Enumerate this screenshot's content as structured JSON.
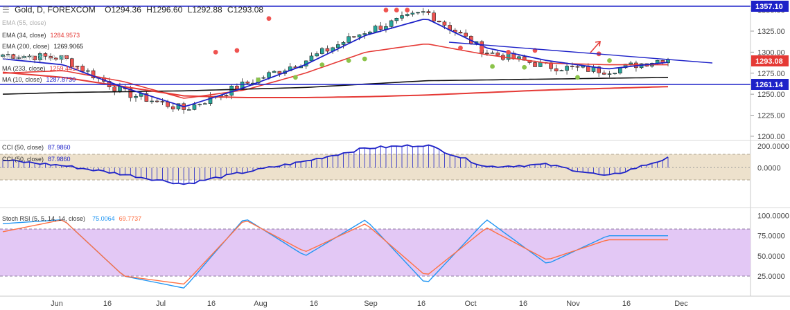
{
  "header": {
    "symbol": "Gold, D, FOREXCOM",
    "o_label": "O",
    "o": "1294.36",
    "h_label": "H",
    "h": "1296.60",
    "l_label": "L",
    "l": "1292.88",
    "c_label": "C",
    "c": "1293.08"
  },
  "indicators": [
    {
      "label": "EMA (55, close)",
      "value": "",
      "value_color": "#b0b0b0",
      "faded": true
    },
    {
      "label": "EMA (34, close)",
      "value": "1284.9573",
      "value_color": "#e53935",
      "faded": false
    },
    {
      "label": "EMA (200, close)",
      "value": "1269.9065",
      "value_color": "#111111",
      "faded": false
    },
    {
      "label": "Ichimoku (9, 26, 52, 26)",
      "value": "",
      "value_color": "#b0b0b0",
      "faded": true
    },
    {
      "label": "MA (233, close)",
      "value": "1259.4419",
      "value_color": "#e53935",
      "faded": false
    },
    {
      "label": "MA (10, close)",
      "value": "1287.8730",
      "value_color": "#1e22c8",
      "faded": false
    }
  ],
  "price_axis": {
    "ticks": [
      "1350.00",
      "1325.00",
      "1300.00",
      "1275.00",
      "1250.00",
      "1225.00",
      "1200.00"
    ],
    "level_labels": [
      {
        "text": "1357.10",
        "color": "#1e22c8"
      },
      {
        "text": "1293.08",
        "color": "#e53935"
      },
      {
        "text": "1261.14",
        "color": "#1e22c8"
      }
    ]
  },
  "cci_panel": {
    "labels": [
      {
        "text": "CCI (50, close)",
        "value": "87.9860"
      },
      {
        "text": "CCI (50, close)",
        "value": "87.9860"
      }
    ],
    "ticks": [
      "200.0000",
      "0.0000"
    ]
  },
  "stoch_panel": {
    "label": "Stoch RSI (5, 5, 14, 14, close)",
    "k_value": "75.0064",
    "d_value": "69.7737",
    "ticks": [
      "100.0000",
      "75.0000",
      "50.0000",
      "25.0000"
    ]
  },
  "time_axis": [
    "Jun",
    "16",
    "Jul",
    "16",
    "Aug",
    "16",
    "Sep",
    "16",
    "Oct",
    "16",
    "Nov",
    "16",
    "Dec"
  ],
  "colors": {
    "up": "#26a69a",
    "down": "#ef5350",
    "blue": "#1e22c8",
    "red": "#e53935",
    "black": "#111111",
    "cci_band": "#ede1cc",
    "stoch_band": "#e3c8f5",
    "stoch_k": "#2196f3",
    "stoch_d": "#ff7043"
  },
  "chart_data": [
    {
      "type": "line",
      "title": "Gold, D, FOREXCOM",
      "x": [
        "Jun",
        "Jun 16",
        "Jul",
        "Jul 16",
        "Aug",
        "Aug 16",
        "Sep",
        "Sep 16",
        "Oct",
        "Oct 16",
        "Nov",
        "Nov 16"
      ],
      "series": [
        {
          "name": "Close",
          "values": [
            1297,
            1293,
            1252,
            1232,
            1262,
            1290,
            1325,
            1348,
            1300,
            1283,
            1278,
            1293
          ]
        },
        {
          "name": "EMA (34, close)",
          "values": [
            1275,
            1278,
            1265,
            1245,
            1255,
            1275,
            1300,
            1310,
            1297,
            1287,
            1285,
            1285
          ]
        },
        {
          "name": "EMA (200, close)",
          "values": [
            1250,
            1252,
            1253,
            1254,
            1256,
            1258,
            1262,
            1266,
            1267,
            1268,
            1269,
            1270
          ]
        },
        {
          "name": "MA (233, close)",
          "values": [
            1276,
            1270,
            1259,
            1248,
            1246,
            1246,
            1247,
            1249,
            1252,
            1255,
            1257,
            1259
          ]
        },
        {
          "name": "MA (10, close)",
          "values": [
            1292,
            1285,
            1258,
            1235,
            1258,
            1285,
            1320,
            1340,
            1305,
            1290,
            1280,
            1288
          ]
        }
      ],
      "annotations": [
        "1357.10",
        "1261.14"
      ],
      "ylim": [
        1195,
        1362
      ]
    },
    {
      "type": "line",
      "title": "CCI (50, close)",
      "x": [
        "Jun",
        "Jun 16",
        "Jul",
        "Jul 16",
        "Aug",
        "Aug 16",
        "Sep",
        "Sep 16",
        "Oct",
        "Oct 16",
        "Nov",
        "Nov 16"
      ],
      "series": [
        {
          "name": "CCI (50, close)",
          "values": [
            70,
            20,
            -60,
            -150,
            -40,
            60,
            180,
            210,
            10,
            30,
            -80,
            88
          ]
        }
      ],
      "ylim": [
        -250,
        250
      ]
    },
    {
      "type": "line",
      "title": "Stoch RSI (5, 5, 14, 14, close)",
      "x": [
        "Jun",
        "Jun 16",
        "Jul",
        "Jul 16",
        "Aug",
        "Aug 16",
        "Sep",
        "Sep 16",
        "Oct",
        "Oct 16",
        "Nov",
        "Nov 16"
      ],
      "series": [
        {
          "name": "%K",
          "values": [
            90,
            95,
            25,
            10,
            97,
            50,
            95,
            15,
            95,
            40,
            75,
            75
          ]
        },
        {
          "name": "%D",
          "values": [
            80,
            95,
            25,
            15,
            95,
            55,
            90,
            25,
            85,
            45,
            70,
            70
          ]
        }
      ],
      "ylim": [
        0,
        110
      ]
    }
  ]
}
